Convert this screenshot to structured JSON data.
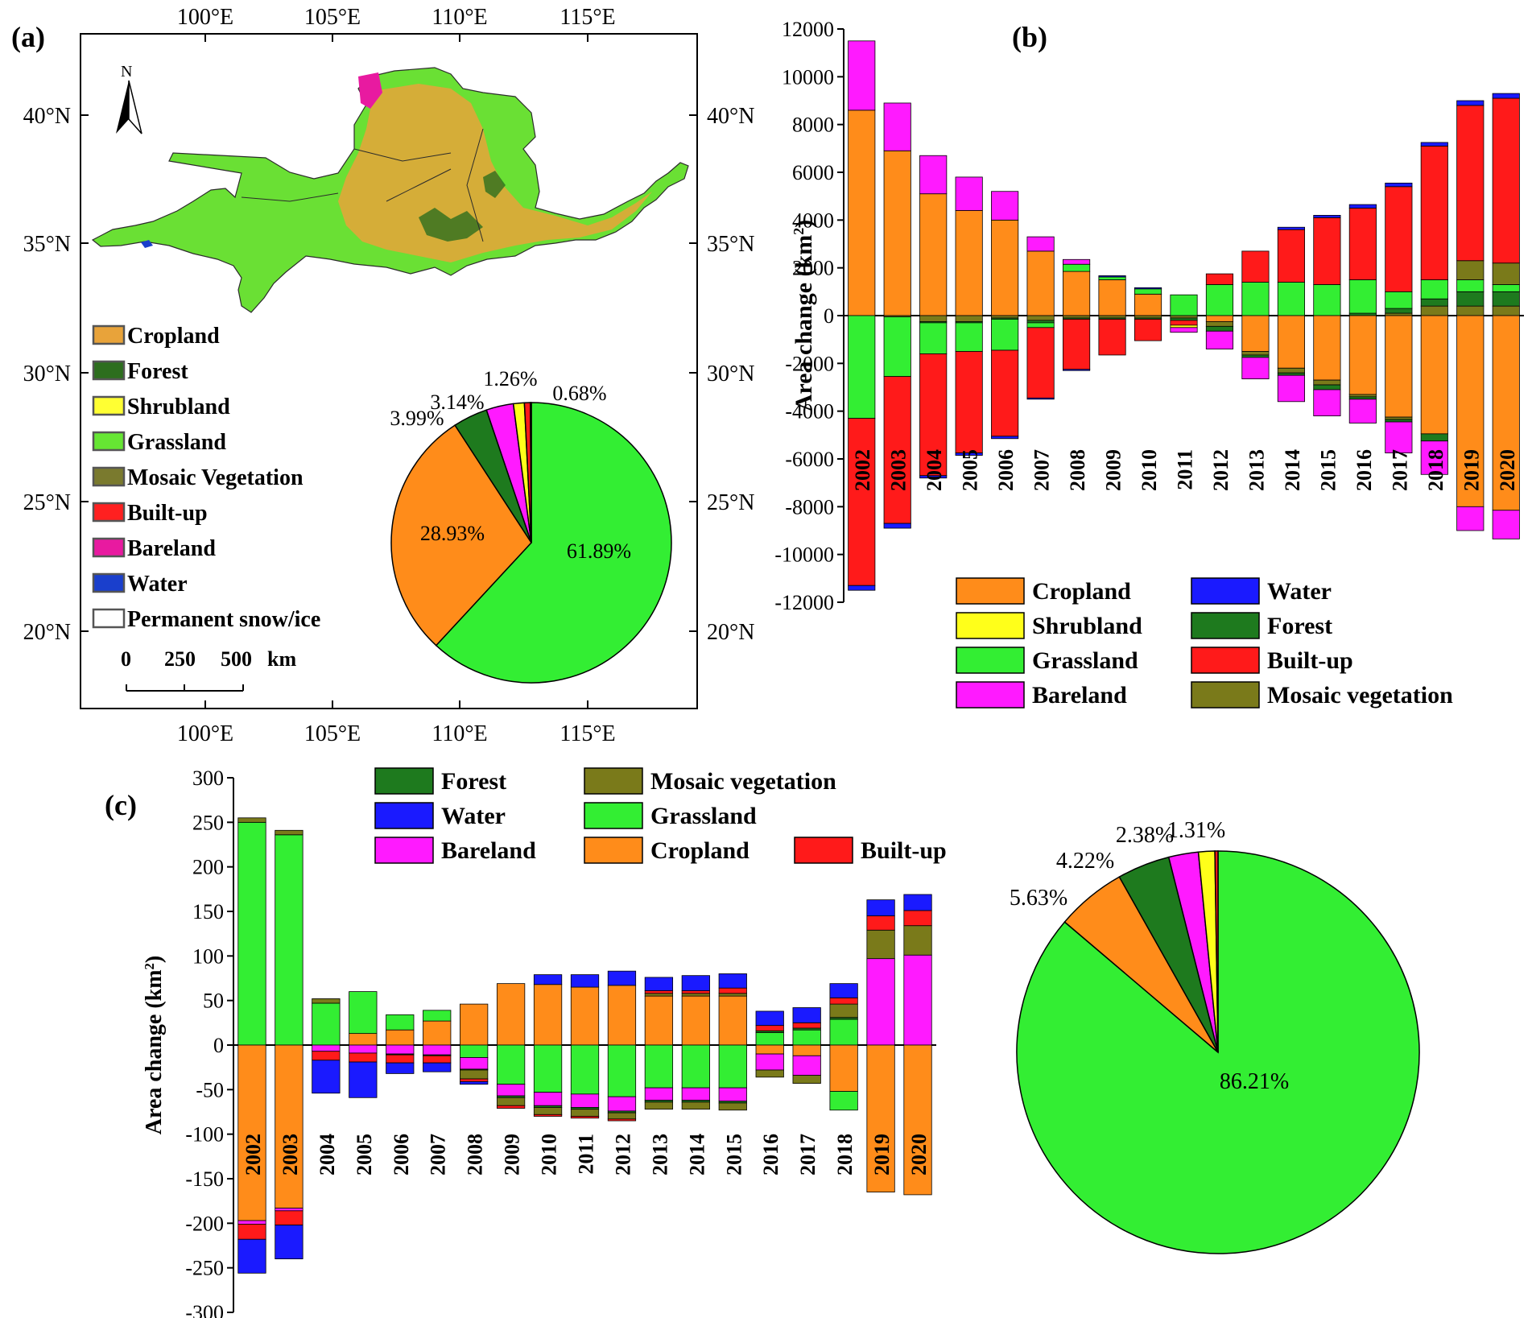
{
  "panels": {
    "a": "(a)",
    "b": "(b)",
    "c": "(c)"
  },
  "colors": {
    "Cropland": "#FF8C1A",
    "Forest": "#1E7A1E",
    "Shrubland": "#FFFF1A",
    "Grassland": "#33EE33",
    "Mosaic vegetation": "#7A7A1A",
    "Built-up": "#FF1A1A",
    "Bareland": "#FF1AFF",
    "Water": "#1A1AFF",
    "Permanent snow/ice": "#FFFFFF"
  },
  "map": {
    "north_label": "N",
    "top_ticks": [
      "100°E",
      "105°E",
      "110°E",
      "115°E"
    ],
    "bottom_ticks": [
      "100°E",
      "105°E",
      "110°E",
      "115°E"
    ],
    "left_ticks": [
      "40°N",
      "35°N",
      "30°N",
      "25°N",
      "20°N"
    ],
    "right_ticks": [
      "40°N",
      "35°N",
      "30°N",
      "25°N",
      "20°N"
    ],
    "legend": [
      "Cropland",
      "Forest",
      "Shrubland",
      "Grassland",
      "Mosaic Vegetation",
      "Built-up",
      "Bareland",
      "Water",
      "Permanent snow/ice"
    ],
    "legend_colors": [
      "#E8A33A",
      "#2D6E1E",
      "#FFFF33",
      "#66E633",
      "#7A7A2E",
      "#FF2020",
      "#E81AA0",
      "#1A3FCC",
      "#FFFFFF"
    ],
    "scale_labels": [
      "0",
      "250",
      "500",
      "km"
    ]
  },
  "pie_a": {
    "type": "pie",
    "slices": [
      {
        "name": "Grassland",
        "value": 61.89,
        "label": "61.89%"
      },
      {
        "name": "Cropland",
        "value": 28.93,
        "label": "28.93%"
      },
      {
        "name": "Forest",
        "value": 3.99,
        "label": "3.99%"
      },
      {
        "name": "Bareland",
        "value": 3.14,
        "label": "3.14%"
      },
      {
        "name": "Shrubland",
        "value": 1.26,
        "label": "1.26%"
      },
      {
        "name": "Built-up",
        "value": 0.68,
        "label": "0.68%"
      },
      {
        "name": "Mosaic vegetation",
        "value": 0.11,
        "label": ""
      }
    ]
  },
  "chart_data": [
    {
      "type": "bar",
      "panel": "(b)",
      "ylabel": "Area change (km²)",
      "ylabel_main": "Area change (km",
      "ylabel_sup": "2",
      "ylabel_close": ")",
      "ylim": [
        -12000,
        12000
      ],
      "yticks": [
        12000,
        10000,
        8000,
        6000,
        4000,
        2000,
        0,
        -2000,
        -4000,
        -6000,
        -8000,
        -10000,
        -12000
      ],
      "categories": [
        "2002",
        "2003",
        "2004",
        "2005",
        "2006",
        "2007",
        "2008",
        "2009",
        "2010",
        "2011",
        "2012",
        "2013",
        "2014",
        "2015",
        "2016",
        "2017",
        "2018",
        "2019",
        "2020"
      ],
      "stacked": true,
      "legend": [
        [
          "Cropland",
          "Water"
        ],
        [
          "Shrubland",
          "Forest"
        ],
        [
          "Grassland",
          "Built-up"
        ],
        [
          "Bareland",
          "Mosaic vegetation"
        ]
      ],
      "series": [
        {
          "name": "Cropland",
          "values": [
            8600,
            6900,
            5100,
            4400,
            4000,
            2700,
            1850,
            1500,
            900,
            0,
            0,
            0,
            0,
            0,
            0,
            0,
            0,
            0,
            0
          ],
          "neg_values": [
            0,
            0,
            0,
            0,
            0,
            0,
            0,
            0,
            0,
            0,
            -250,
            -1500,
            -2200,
            -2700,
            -3300,
            -4250,
            -4950,
            -8000,
            -8150
          ]
        },
        {
          "name": "Mosaic vegetation",
          "values": [
            0,
            0,
            0,
            0,
            0,
            0,
            0,
            0,
            0,
            0,
            0,
            0,
            0,
            0,
            0,
            100,
            400,
            400,
            400
          ],
          "neg_values": [
            0,
            -50,
            -250,
            -250,
            -100,
            -200,
            -100,
            -100,
            -100,
            -100,
            -200,
            -150,
            -200,
            -200,
            -100,
            -100,
            0,
            0,
            0
          ]
        },
        {
          "name": "Forest",
          "values": [
            0,
            0,
            0,
            0,
            0,
            0,
            0,
            0,
            0,
            0,
            0,
            0,
            0,
            0,
            100,
            200,
            300,
            600,
            600
          ],
          "neg_values": [
            0,
            0,
            -50,
            -50,
            -50,
            -100,
            -50,
            -50,
            -50,
            -100,
            -200,
            -100,
            -100,
            -200,
            -100,
            -100,
            -300,
            0,
            0
          ]
        },
        {
          "name": "Grassland",
          "values": [
            0,
            0,
            0,
            0,
            0,
            0,
            300,
            120,
            220,
            870,
            1300,
            1400,
            1400,
            1300,
            1400,
            700,
            800,
            500,
            300
          ],
          "neg_values": [
            -4300,
            -2500,
            -1300,
            -1200,
            -1300,
            -200,
            0,
            0,
            0,
            0,
            0,
            0,
            0,
            0,
            0,
            0,
            0,
            0,
            0
          ]
        },
        {
          "name": "Mosaic vegetation",
          "values": [
            0,
            0,
            0,
            0,
            0,
            0,
            0,
            0,
            0,
            0,
            0,
            0,
            0,
            0,
            0,
            0,
            0,
            800,
            900
          ],
          "neg_values": [
            0,
            0,
            0,
            0,
            0,
            0,
            0,
            0,
            0,
            0,
            0,
            0,
            0,
            0,
            0,
            0,
            0,
            0,
            0
          ]
        },
        {
          "name": "Built-up",
          "values": [
            0,
            0,
            0,
            0,
            0,
            0,
            0,
            0,
            0,
            0,
            450,
            1300,
            2200,
            2800,
            3000,
            4400,
            5600,
            6500,
            6900
          ],
          "neg_values": [
            -7000,
            -6150,
            -5100,
            -4250,
            -3600,
            -2950,
            -2100,
            -1500,
            -900,
            -200,
            0,
            0,
            0,
            0,
            0,
            0,
            0,
            0,
            0
          ]
        },
        {
          "name": "Shrubland",
          "values": [
            0,
            0,
            0,
            0,
            0,
            0,
            0,
            0,
            0,
            0,
            0,
            0,
            0,
            0,
            0,
            0,
            0,
            0,
            0
          ],
          "neg_values": [
            0,
            0,
            0,
            0,
            0,
            0,
            0,
            0,
            0,
            -100,
            0,
            0,
            0,
            0,
            0,
            0,
            0,
            0,
            0
          ]
        },
        {
          "name": "Bareland",
          "values": [
            2900,
            2000,
            1600,
            1400,
            1200,
            600,
            200,
            0,
            0,
            0,
            0,
            0,
            0,
            0,
            0,
            0,
            0,
            0,
            0
          ],
          "neg_values": [
            0,
            0,
            0,
            0,
            0,
            0,
            0,
            0,
            0,
            -200,
            -750,
            -900,
            -1100,
            -1100,
            -1000,
            -1300,
            -1400,
            -1000,
            -1200
          ]
        },
        {
          "name": "Water",
          "values": [
            0,
            0,
            0,
            0,
            0,
            0,
            0,
            50,
            50,
            0,
            0,
            0,
            100,
            100,
            150,
            150,
            150,
            200,
            200
          ],
          "neg_values": [
            -200,
            -200,
            -100,
            -100,
            -100,
            -50,
            -50,
            0,
            0,
            0,
            0,
            0,
            0,
            0,
            0,
            0,
            0,
            0,
            0
          ]
        }
      ]
    },
    {
      "type": "bar",
      "panel": "(c)",
      "ylabel": "Area change (km²)",
      "ylabel_main": "Area change (km",
      "ylabel_sup": "2",
      "ylabel_close": ")",
      "ylim": [
        -300,
        300
      ],
      "yticks": [
        300,
        250,
        200,
        150,
        100,
        50,
        0,
        -50,
        -100,
        -150,
        -200,
        -250,
        -300
      ],
      "categories": [
        "2002",
        "2003",
        "2004",
        "2005",
        "2006",
        "2007",
        "2008",
        "2009",
        "2010",
        "2011",
        "2012",
        "2013",
        "2014",
        "2015",
        "2016",
        "2017",
        "2018",
        "2019",
        "2020"
      ],
      "stacked": true,
      "legend": [
        [
          "Forest",
          "Mosaic vegetation",
          ""
        ],
        [
          "Water",
          "Grassland",
          ""
        ],
        [
          "Bareland",
          "Cropland",
          "Built-up"
        ]
      ],
      "series": [
        {
          "name": "Cropland",
          "values": [
            0,
            0,
            0,
            13,
            17,
            27,
            46,
            69,
            68,
            65,
            67,
            55,
            55,
            55,
            0,
            0,
            0,
            0,
            0
          ],
          "neg_values": [
            -197,
            -183,
            0,
            0,
            0,
            0,
            0,
            0,
            0,
            0,
            0,
            0,
            0,
            0,
            -10,
            -12,
            -52,
            -165,
            -168
          ]
        },
        {
          "name": "Grassland",
          "values": [
            250,
            236,
            47,
            47,
            17,
            12,
            0,
            0,
            0,
            0,
            0,
            0,
            0,
            0,
            14,
            17,
            29,
            0,
            0
          ],
          "neg_values": [
            0,
            0,
            0,
            0,
            0,
            0,
            -14,
            -44,
            -53,
            -55,
            -58,
            -48,
            -48,
            -48,
            0,
            0,
            -21,
            0,
            0
          ]
        },
        {
          "name": "Bareland",
          "values": [
            0,
            0,
            0,
            0,
            0,
            0,
            0,
            0,
            0,
            0,
            0,
            0,
            0,
            0,
            0,
            0,
            0,
            97,
            101
          ],
          "neg_values": [
            -4,
            -3,
            -7,
            -9,
            -10,
            -11,
            -13,
            -13,
            -15,
            -15,
            -16,
            -14,
            -14,
            -15,
            -18,
            -22,
            0,
            0,
            0
          ]
        },
        {
          "name": "Forest",
          "values": [
            0,
            0,
            0,
            0,
            0,
            0,
            0,
            0,
            0,
            0,
            0,
            0,
            0,
            0,
            2,
            2,
            2,
            0,
            0
          ],
          "neg_values": [
            0,
            0,
            0,
            0,
            -1,
            -1,
            -1,
            -2,
            -2,
            -2,
            -2,
            -2,
            -2,
            -2,
            0,
            0,
            0,
            0,
            0
          ]
        },
        {
          "name": "Mosaic vegetation",
          "values": [
            5,
            5,
            5,
            0,
            0,
            0,
            0,
            0,
            0,
            0,
            0,
            3,
            3,
            3,
            0,
            0,
            15,
            32,
            33
          ],
          "neg_values": [
            0,
            0,
            0,
            0,
            0,
            0,
            -10,
            -9,
            -8,
            -8,
            -7,
            -8,
            -8,
            -8,
            -8,
            -9,
            0,
            0,
            0
          ]
        },
        {
          "name": "Built-up",
          "values": [
            0,
            0,
            0,
            0,
            0,
            0,
            0,
            0,
            0,
            0,
            0,
            3,
            3,
            6,
            6,
            6,
            7,
            16,
            17
          ],
          "neg_values": [
            -17,
            -16,
            -10,
            -10,
            -9,
            -8,
            -3,
            -3,
            -2,
            -2,
            -2,
            0,
            0,
            0,
            0,
            0,
            0,
            0,
            0
          ]
        },
        {
          "name": "Water",
          "values": [
            0,
            0,
            0,
            0,
            0,
            0,
            0,
            0,
            11,
            14,
            16,
            15,
            17,
            16,
            16,
            17,
            16,
            18,
            18
          ],
          "neg_values": [
            -38,
            -38,
            -37,
            -40,
            -12,
            -10,
            -3,
            0,
            0,
            0,
            0,
            0,
            0,
            0,
            0,
            0,
            0,
            0,
            0
          ]
        }
      ]
    },
    {
      "type": "pie",
      "panel": "(c) pie",
      "slices": [
        {
          "name": "Grassland",
          "value": 86.21,
          "label": "86.21%"
        },
        {
          "name": "Cropland",
          "value": 5.63,
          "label": "5.63%"
        },
        {
          "name": "Forest",
          "value": 4.22,
          "label": "4.22%"
        },
        {
          "name": "Bareland",
          "value": 2.38,
          "label": "2.38%"
        },
        {
          "name": "Shrubland",
          "value": 1.31,
          "label": "1.31%"
        },
        {
          "name": "Built-up",
          "value": 0.25,
          "label": ""
        }
      ]
    }
  ]
}
